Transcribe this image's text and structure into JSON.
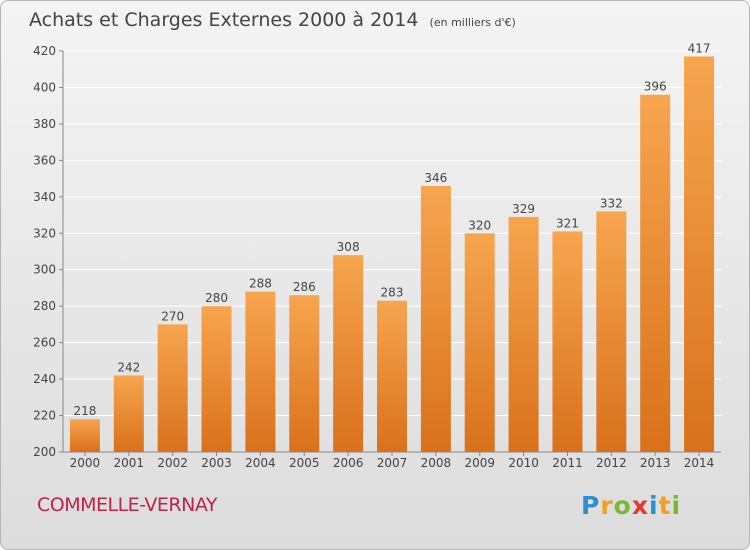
{
  "title": "Achats et Charges Externes 2000 à 2014",
  "unit": "(en milliers d'€)",
  "commune": "COMMELLE-VERNAY",
  "logo": {
    "letters": [
      "P",
      "r",
      "o",
      "x",
      "i",
      "t",
      "i"
    ],
    "colors": [
      "#2c8fd1",
      "#f0a21c",
      "#7ab82d",
      "#e33b2f",
      "#2c8fd1",
      "#f0a21c",
      "#7ab82d"
    ]
  },
  "colors": {
    "bar_top": "#f7a54f",
    "bar_bottom": "#d9711c",
    "text": "#444444",
    "commune": "#c0224a"
  },
  "chart_data": {
    "type": "bar",
    "categories": [
      "2000",
      "2001",
      "2002",
      "2003",
      "2004",
      "2005",
      "2006",
      "2007",
      "2008",
      "2009",
      "2010",
      "2011",
      "2012",
      "2013",
      "2014"
    ],
    "values": [
      218,
      242,
      270,
      280,
      288,
      286,
      308,
      283,
      346,
      320,
      329,
      321,
      332,
      396,
      417
    ],
    "ylim": [
      200,
      420
    ],
    "yticks": [
      200,
      220,
      240,
      260,
      280,
      300,
      320,
      340,
      360,
      380,
      400,
      420
    ],
    "grid": true
  }
}
